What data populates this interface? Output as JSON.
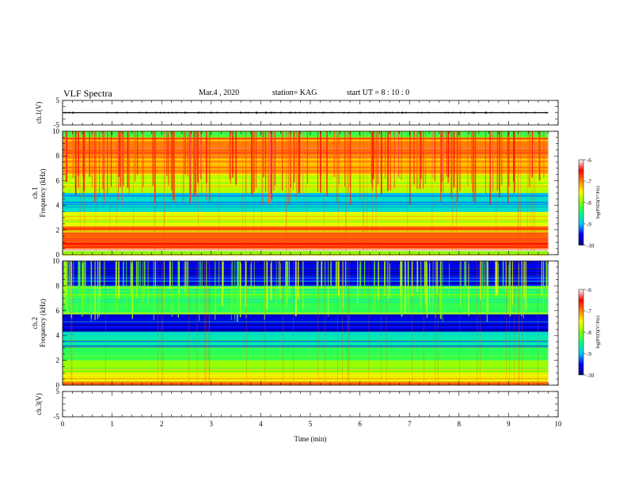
{
  "header": {
    "title": "VLF Spectra",
    "date": "Mar.4 , 2020",
    "station": "station= KAG",
    "start": "start  UT =   8 : 10 : 0"
  },
  "chart_data": [
    {
      "type": "line",
      "ylabel": "ch.1(V)",
      "ylim": [
        -5,
        5
      ],
      "yticks": [
        "5",
        "-5"
      ],
      "x": [
        0,
        9.8
      ],
      "values": [
        0,
        0
      ],
      "xlim": [
        0,
        10
      ]
    },
    {
      "type": "heatmap",
      "ylabel_line1": "ch.1",
      "ylabel_line2": "Frequency (kHz)",
      "ylim": [
        0,
        10
      ],
      "yticks": [
        "0",
        "2",
        "4",
        "6",
        "8",
        "10"
      ],
      "xlim": [
        0,
        10
      ],
      "data_end_x": 9.8,
      "colorbar": {
        "label": "log(PSD)(V²/Hz)",
        "range": [
          -10,
          -6
        ],
        "ticks": [
          "-6",
          "-7",
          "-8",
          "-9",
          "-10"
        ],
        "colors": [
          "#000080",
          "#0000ff",
          "#00c8ff",
          "#00ff80",
          "#80ff00",
          "#ffff00",
          "#ff8000",
          "#ff0000",
          "#ffffff"
        ]
      },
      "bands": [
        {
          "range": [
            0,
            0.3
          ],
          "level": -8.0
        },
        {
          "range": [
            0.3,
            0.5
          ],
          "level": -6.2
        },
        {
          "range": [
            0.5,
            1.0
          ],
          "level": -6.6
        },
        {
          "range": [
            1.0,
            2.3
          ],
          "level": -6.9
        },
        {
          "range": [
            2.3,
            3.5
          ],
          "level": -7.6
        },
        {
          "range": [
            3.5,
            5.0
          ],
          "level": -8.8
        },
        {
          "range": [
            5.0,
            6.5
          ],
          "level": -7.8
        },
        {
          "range": [
            6.5,
            8.0
          ],
          "level": -7.2
        },
        {
          "range": [
            8.0,
            9.5
          ],
          "level": -7.0
        },
        {
          "range": [
            9.5,
            10
          ],
          "level": -8.2
        }
      ]
    },
    {
      "type": "heatmap",
      "ylabel_line1": "ch.2",
      "ylabel_line2": "Frequency (kHz)",
      "ylim": [
        0,
        10
      ],
      "yticks": [
        "0",
        "2",
        "4",
        "6",
        "8",
        "10"
      ],
      "xlim": [
        0,
        10
      ],
      "data_end_x": 9.8,
      "colorbar": {
        "label": "log(PSD)(V²/Hz)",
        "range": [
          -10,
          -6
        ],
        "ticks": [
          "-6",
          "-7",
          "-8",
          "-9",
          "-10"
        ],
        "colors": [
          "#000080",
          "#0000ff",
          "#00c8ff",
          "#00ff80",
          "#80ff00",
          "#ffff00",
          "#ff8000",
          "#ff0000",
          "#ffffff"
        ]
      },
      "bands": [
        {
          "range": [
            0,
            0.3
          ],
          "level": -7.0
        },
        {
          "range": [
            0.3,
            1.0
          ],
          "level": -7.6
        },
        {
          "range": [
            1.0,
            2.0
          ],
          "level": -7.9
        },
        {
          "range": [
            2.0,
            3.0
          ],
          "level": -8.3
        },
        {
          "range": [
            3.0,
            4.3
          ],
          "level": -8.7
        },
        {
          "range": [
            4.3,
            5.7
          ],
          "level": -9.6
        },
        {
          "range": [
            5.7,
            8.0
          ],
          "level": -8.3
        },
        {
          "range": [
            8.0,
            10
          ],
          "level": -9.5
        }
      ]
    },
    {
      "type": "line",
      "ylabel": "ch.3(V)",
      "ylim": [
        -5,
        5
      ],
      "yticks": [
        "5",
        "-5"
      ],
      "x": [],
      "values": [],
      "xlim": [
        0,
        10
      ],
      "xlabel": "Time (min)",
      "xticks": [
        "0",
        "1",
        "2",
        "3",
        "4",
        "5",
        "6",
        "7",
        "8",
        "9",
        "10"
      ]
    }
  ]
}
